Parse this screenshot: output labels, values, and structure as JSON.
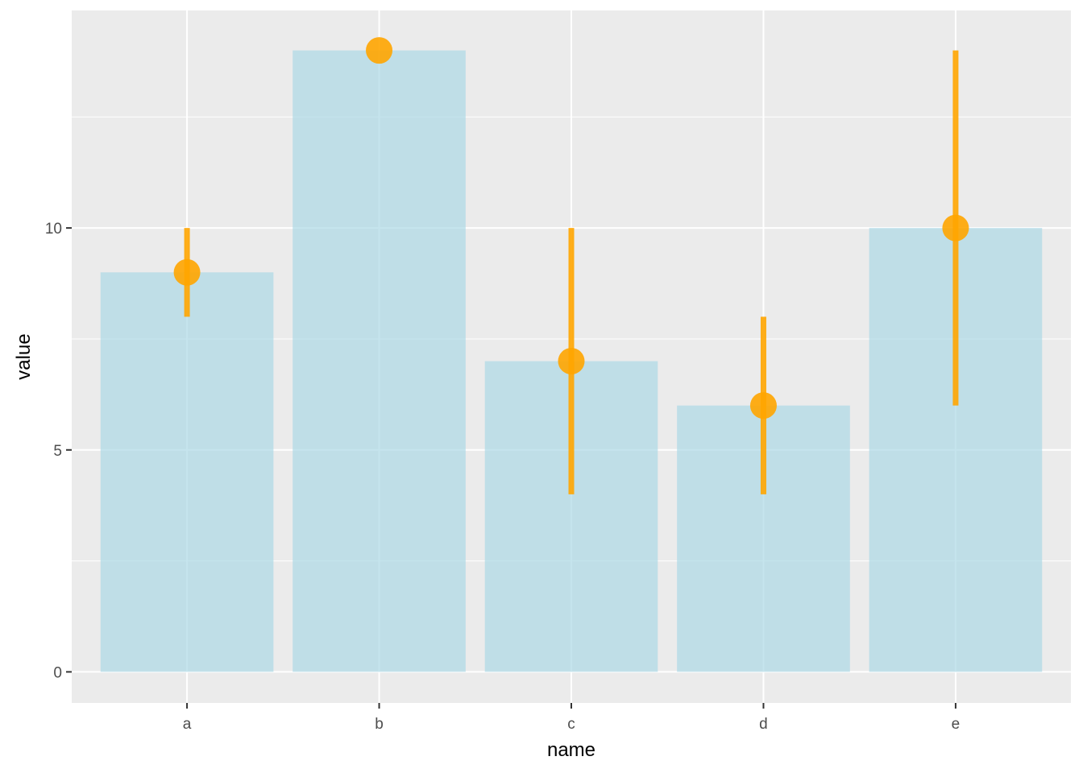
{
  "colors": {
    "panel_background": "#EBEBEB",
    "grid_line": "#FFFFFF",
    "bar_fill": "#ADD8E6",
    "point_and_errorbar": "#FFA500",
    "tick_text": "#4D4D4D",
    "tick_mark": "#333333"
  },
  "chart_data": {
    "type": "bar",
    "xlabel": "name",
    "ylabel": "value",
    "categories": [
      "a",
      "b",
      "c",
      "d",
      "e"
    ],
    "values": [
      9,
      14,
      7,
      6,
      10
    ],
    "error_bars": [
      {
        "low": 8,
        "high": 10
      },
      {
        "low": 14,
        "high": 14
      },
      {
        "low": 4,
        "high": 10
      },
      {
        "low": 4,
        "high": 8
      },
      {
        "low": 6,
        "high": 14
      }
    ],
    "point_values": [
      9,
      14,
      7,
      6,
      10
    ],
    "yticks": [
      0,
      5,
      10
    ],
    "ylim": [
      -0.7,
      14.9
    ],
    "grid": true,
    "legend": "none"
  }
}
